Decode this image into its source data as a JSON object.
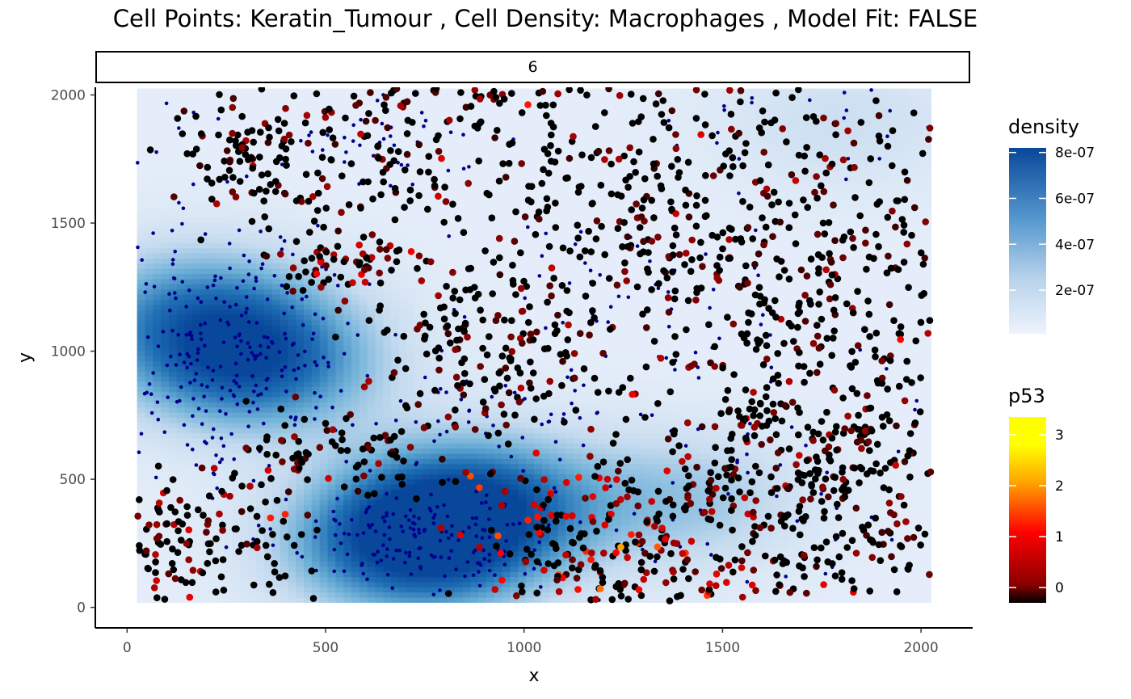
{
  "colors": {
    "density_low": "#eef3fc",
    "density_high": "#08479a",
    "macrophage_points": "#00008b",
    "p53_gradient": [
      "#000000",
      "#8b0000",
      "#ff0000",
      "#ffa500",
      "#ffff00"
    ],
    "axis": "#000000",
    "tick_text": "#4d4d4d"
  },
  "chart_data": {
    "type": "scatter",
    "title": "Cell Points: Keratin_Tumour , Cell Density: Macrophages , Model Fit: FALSE",
    "facet_label": "6",
    "xlabel": "x",
    "ylabel": "y",
    "xlim": [
      -80,
      2130
    ],
    "ylim": [
      -80,
      2030
    ],
    "x_ticks": [
      0,
      500,
      1000,
      1500,
      2000
    ],
    "y_ticks": [
      0,
      500,
      1000,
      1500,
      2000
    ],
    "grid": false,
    "density_surface": {
      "name": "density",
      "x_range": [
        25,
        2025
      ],
      "y_range": [
        20,
        2025
      ],
      "peaks": [
        {
          "x": 730,
          "y": 250,
          "value": 8e-07
        },
        {
          "x": 320,
          "y": 950,
          "value": 6.2e-07
        },
        {
          "x": 880,
          "y": 420,
          "value": 5.5e-07
        },
        {
          "x": 180,
          "y": 1150,
          "value": 4.5e-07
        },
        {
          "x": 1400,
          "y": 420,
          "value": 2.5e-07
        },
        {
          "x": 1800,
          "y": 1900,
          "value": 1.2e-07
        }
      ]
    },
    "series": [
      {
        "name": "Macrophages",
        "marker": "small dark-blue dot",
        "clusters": [
          {
            "x": 730,
            "y": 280,
            "n": 170,
            "sx": 170,
            "sy": 110
          },
          {
            "x": 320,
            "y": 980,
            "n": 200,
            "sx": 140,
            "sy": 260
          },
          {
            "x": 130,
            "y": 1100,
            "n": 70,
            "sx": 70,
            "sy": 350
          },
          {
            "x": 640,
            "y": 1850,
            "n": 45,
            "sx": 200,
            "sy": 110
          },
          {
            "x": 900,
            "y": 760,
            "n": 40,
            "sx": 160,
            "sy": 80
          },
          {
            "x": 1200,
            "y": 1150,
            "n": 40,
            "sx": 250,
            "sy": 200
          },
          {
            "x": 1500,
            "y": 1000,
            "n": 50,
            "sx": 350,
            "sy": 350
          },
          {
            "x": 1700,
            "y": 1900,
            "n": 25,
            "sx": 250,
            "sy": 80
          },
          {
            "x": 1500,
            "y": 300,
            "n": 35,
            "sx": 350,
            "sy": 200
          }
        ]
      },
      {
        "name": "Keratin_Tumour",
        "marker": "dot colored by p53",
        "clusters": [
          {
            "x": 1720,
            "y": 1200,
            "n": 430,
            "sx": 230,
            "sy": 460,
            "p53": 0.2
          },
          {
            "x": 1680,
            "y": 480,
            "n": 330,
            "sx": 260,
            "sy": 230,
            "p53": 0.4
          },
          {
            "x": 1300,
            "y": 1600,
            "n": 240,
            "sx": 230,
            "sy": 230,
            "p53": 0.2
          },
          {
            "x": 620,
            "y": 1750,
            "n": 170,
            "sx": 200,
            "sy": 220,
            "p53": 0.4
          },
          {
            "x": 900,
            "y": 1000,
            "n": 180,
            "sx": 170,
            "sy": 180,
            "p53": 0.3
          },
          {
            "x": 280,
            "y": 1750,
            "n": 70,
            "sx": 80,
            "sy": 100,
            "p53": 0.2
          },
          {
            "x": 200,
            "y": 250,
            "n": 140,
            "sx": 120,
            "sy": 140,
            "p53": 0.7
          },
          {
            "x": 1150,
            "y": 300,
            "n": 150,
            "sx": 150,
            "sy": 150,
            "p53": 1.4
          },
          {
            "x": 520,
            "y": 600,
            "n": 80,
            "sx": 130,
            "sy": 80,
            "p53": 0.4
          },
          {
            "x": 1500,
            "y": 100,
            "n": 90,
            "sx": 300,
            "sy": 70,
            "p53": 0.9
          },
          {
            "x": 560,
            "y": 1340,
            "n": 60,
            "sx": 100,
            "sy": 50,
            "p53": 0.8
          },
          {
            "x": 900,
            "y": 2000,
            "n": 50,
            "sx": 300,
            "sy": 30,
            "p53": 0.5
          }
        ]
      }
    ],
    "legends": [
      {
        "title": "density",
        "labels": [
          "8e-07",
          "6e-07",
          "4e-07",
          "2e-07"
        ],
        "values": [
          8e-07,
          6e-07,
          4e-07,
          2e-07
        ],
        "min": 1e-08,
        "max": 8.2e-07
      },
      {
        "title": "p53",
        "labels": [
          "3",
          "2",
          "1",
          "0"
        ],
        "values": [
          3,
          2,
          1,
          0
        ],
        "min": -0.3,
        "max": 3.35
      }
    ],
    "legend_position": "right"
  }
}
